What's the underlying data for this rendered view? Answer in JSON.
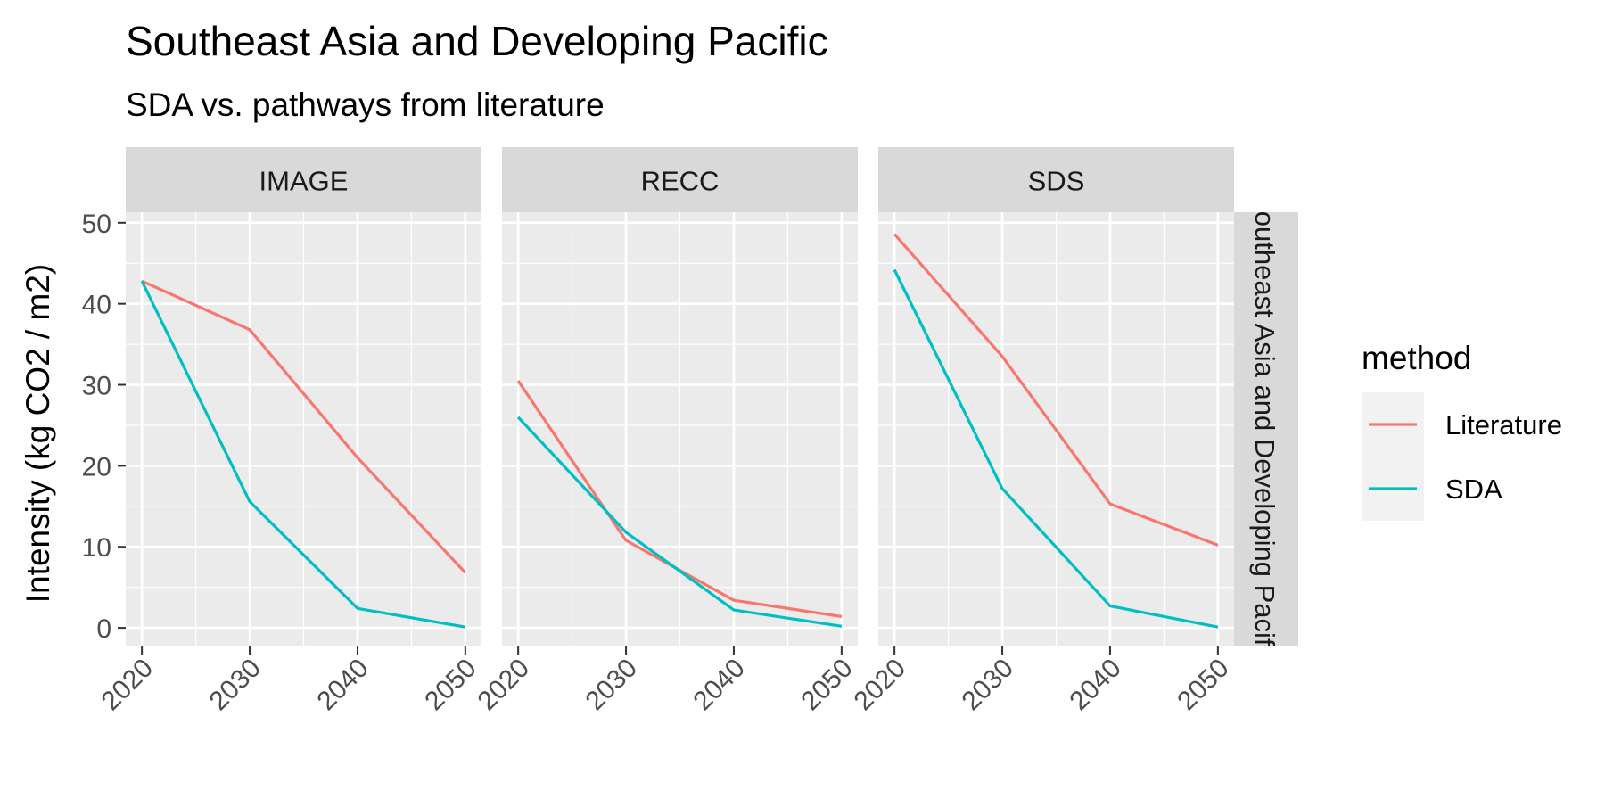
{
  "chart_data": {
    "type": "line",
    "title": "Southeast Asia and Developing Pacific",
    "subtitle": "SDA vs. pathways from literature",
    "ylabel": "Intensity (kg CO2 / m2)",
    "xlabel": "",
    "x_ticks": [
      2020,
      2030,
      2040,
      2050
    ],
    "y_ticks": [
      0,
      10,
      20,
      30,
      40,
      50
    ],
    "xlim": [
      2018.5,
      2051.5
    ],
    "ylim": [
      -2.3,
      51.3
    ],
    "grid": true,
    "strip_right_label": "Southeast Asia and Developing Pacific",
    "legend": {
      "title": "method",
      "position": "right",
      "entries": [
        {
          "name": "Literature",
          "color": "#F8766D"
        },
        {
          "name": "SDA",
          "color": "#00BFC4"
        }
      ]
    },
    "facets": [
      {
        "label": "IMAGE",
        "series": [
          {
            "name": "Literature",
            "color": "#F8766D",
            "x": [
              2020,
              2030,
              2040,
              2050
            ],
            "y": [
              42.8,
              36.8,
              21.0,
              6.8
            ]
          },
          {
            "name": "SDA",
            "color": "#00BFC4",
            "x": [
              2020,
              2030,
              2040,
              2050
            ],
            "y": [
              42.8,
              15.6,
              2.4,
              0.1
            ]
          }
        ]
      },
      {
        "label": "RECC",
        "series": [
          {
            "name": "Literature",
            "color": "#F8766D",
            "x": [
              2020,
              2030,
              2040,
              2050
            ],
            "y": [
              30.5,
              10.8,
              3.4,
              1.4
            ]
          },
          {
            "name": "SDA",
            "color": "#00BFC4",
            "x": [
              2020,
              2030,
              2040,
              2050
            ],
            "y": [
              26.0,
              11.8,
              2.2,
              0.2
            ]
          }
        ]
      },
      {
        "label": "SDS",
        "series": [
          {
            "name": "Literature",
            "color": "#F8766D",
            "x": [
              2020,
              2030,
              2040,
              2050
            ],
            "y": [
              48.6,
              33.5,
              15.3,
              10.2
            ]
          },
          {
            "name": "SDA",
            "color": "#00BFC4",
            "x": [
              2020,
              2030,
              2040,
              2050
            ],
            "y": [
              44.2,
              17.2,
              2.7,
              0.1
            ]
          }
        ]
      }
    ]
  }
}
